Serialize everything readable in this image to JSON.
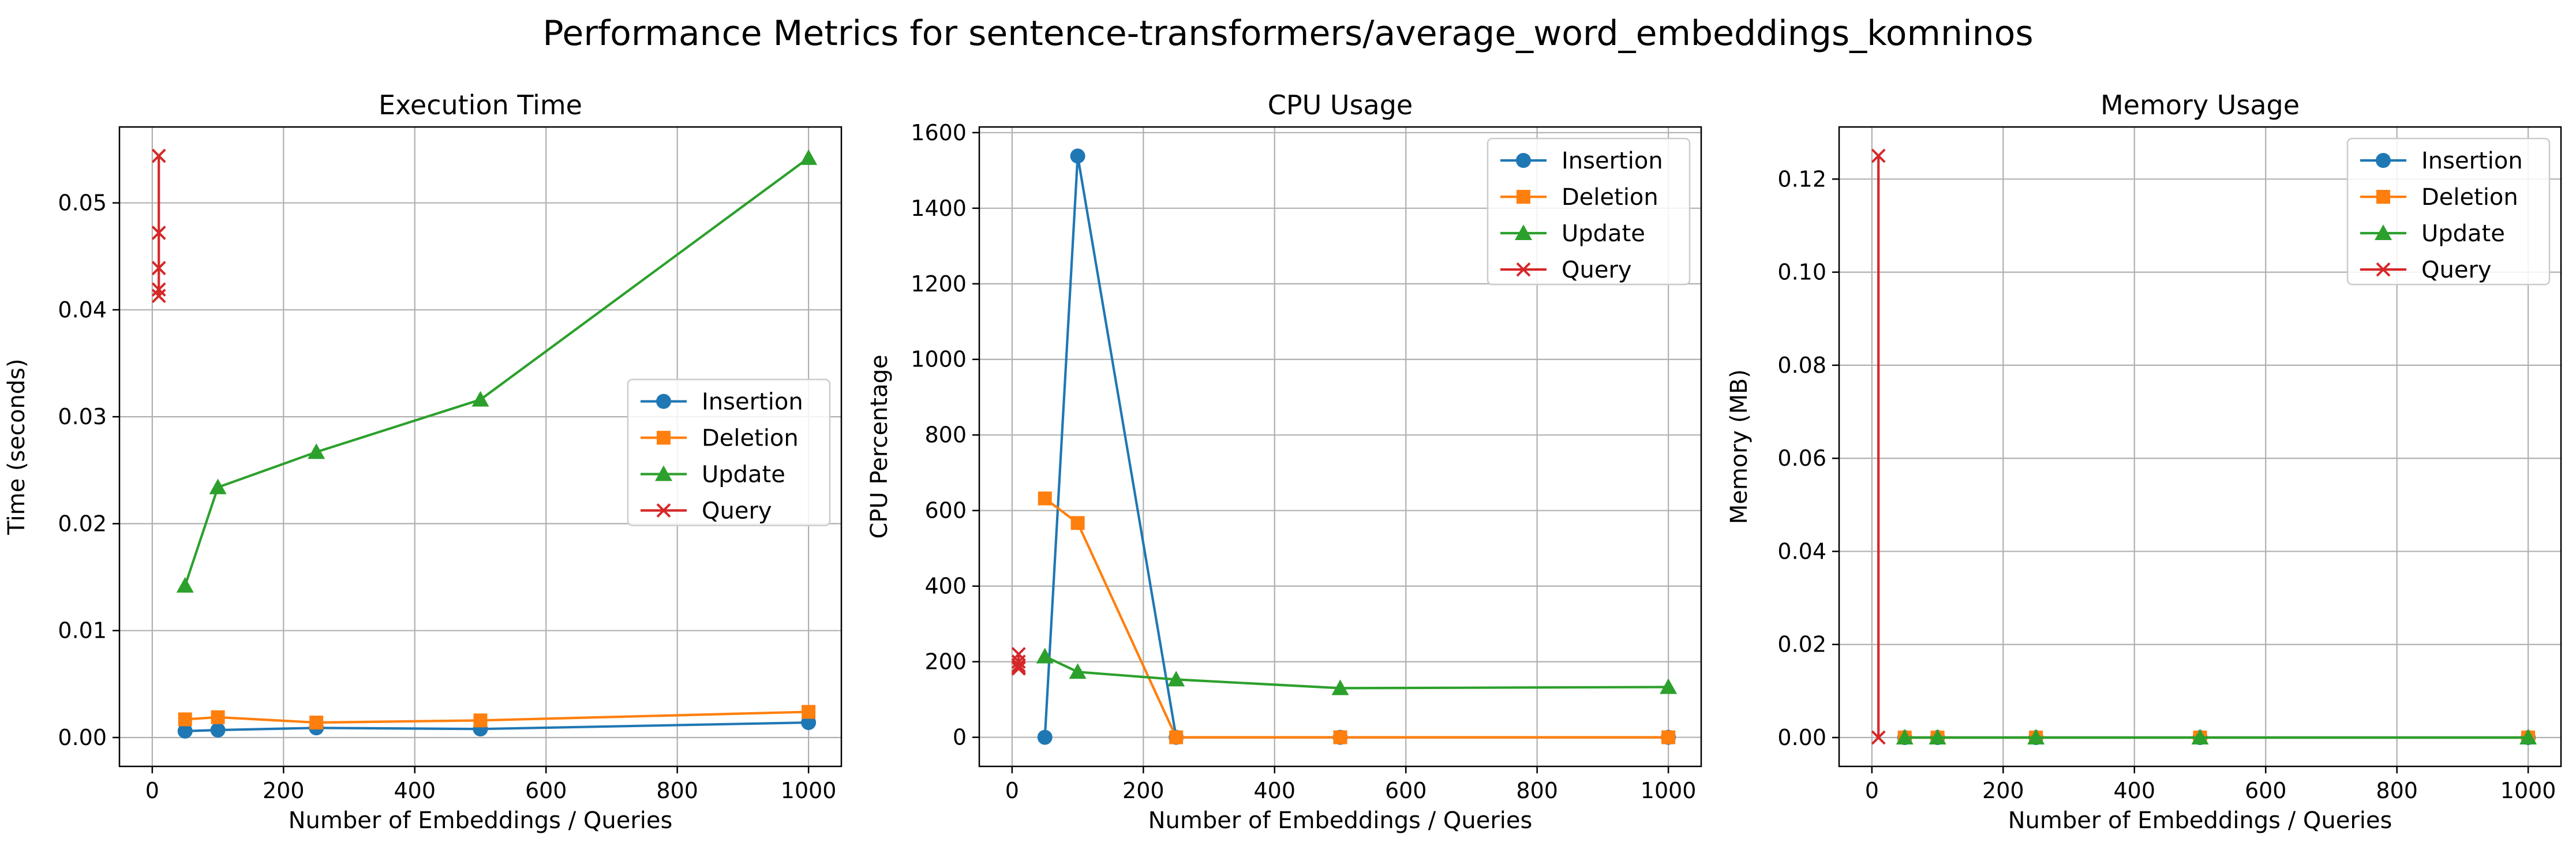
{
  "figure_title": "Performance Metrics for sentence-transformers/average_word_embeddings_komninos",
  "colors": {
    "Insertion": "#1f77b4",
    "Deletion": "#ff7f0e",
    "Update": "#2ca02c",
    "Query": "#d62728"
  },
  "chart_data": [
    {
      "type": "line",
      "title": "Execution Time",
      "xlabel": "Number of Embeddings / Queries",
      "ylabel": "Time (seconds)",
      "xlim": [
        -50,
        1050
      ],
      "ylim": [
        -0.0027,
        0.0571
      ],
      "xticks": [
        0,
        200,
        400,
        600,
        800,
        1000
      ],
      "yticks": [
        0.0,
        0.01,
        0.02,
        0.03,
        0.04,
        0.05
      ],
      "ytick_labels": [
        "0.00",
        "0.01",
        "0.02",
        "0.03",
        "0.04",
        "0.05"
      ],
      "grid": true,
      "legend_position": "center right",
      "series": [
        {
          "name": "Insertion",
          "marker": "circle",
          "x": [
            50,
            100,
            250,
            500,
            1000
          ],
          "y": [
            0.0006,
            0.0007,
            0.0009,
            0.0008,
            0.0014
          ]
        },
        {
          "name": "Deletion",
          "marker": "square",
          "x": [
            50,
            100,
            250,
            500,
            1000
          ],
          "y": [
            0.0017,
            0.0019,
            0.0014,
            0.0016,
            0.0024
          ]
        },
        {
          "name": "Update",
          "marker": "triangle",
          "x": [
            50,
            100,
            250,
            500,
            1000
          ],
          "y": [
            0.0142,
            0.0234,
            0.0267,
            0.0316,
            0.0542
          ]
        },
        {
          "name": "Query",
          "marker": "x",
          "x": [
            10,
            10,
            10,
            10,
            10
          ],
          "y": [
            0.0544,
            0.0472,
            0.0439,
            0.0419,
            0.0413
          ]
        }
      ]
    },
    {
      "type": "line",
      "title": "CPU Usage",
      "xlabel": "Number of Embeddings / Queries",
      "ylabel": "CPU Percentage",
      "xlim": [
        -50,
        1050
      ],
      "ylim": [
        -77,
        1615
      ],
      "xticks": [
        0,
        200,
        400,
        600,
        800,
        1000
      ],
      "yticks": [
        0,
        200,
        400,
        600,
        800,
        1000,
        1200,
        1400,
        1600
      ],
      "ytick_labels": [
        "0",
        "200",
        "400",
        "600",
        "800",
        "1000",
        "1200",
        "1400",
        "1600"
      ],
      "grid": true,
      "legend_position": "upper right",
      "series": [
        {
          "name": "Insertion",
          "marker": "circle",
          "x": [
            50,
            100,
            250,
            500,
            1000
          ],
          "y": [
            0,
            1538,
            0,
            0,
            0
          ]
        },
        {
          "name": "Deletion",
          "marker": "square",
          "x": [
            50,
            100,
            250,
            500,
            1000
          ],
          "y": [
            632,
            567,
            0,
            0,
            0
          ]
        },
        {
          "name": "Update",
          "marker": "triangle",
          "x": [
            50,
            100,
            250,
            500,
            1000
          ],
          "y": [
            214,
            173,
            153,
            130,
            133
          ]
        },
        {
          "name": "Query",
          "marker": "x",
          "x": [
            10,
            10,
            10,
            10,
            10
          ],
          "y": [
            220,
            200,
            190,
            185,
            182
          ]
        }
      ]
    },
    {
      "type": "line",
      "title": "Memory Usage",
      "xlabel": "Number of Embeddings / Queries",
      "ylabel": "Memory (MB)",
      "xlim": [
        -50,
        1050
      ],
      "ylim": [
        -0.0062,
        0.1312
      ],
      "xticks": [
        0,
        200,
        400,
        600,
        800,
        1000
      ],
      "yticks": [
        0.0,
        0.02,
        0.04,
        0.06,
        0.08,
        0.1,
        0.12
      ],
      "ytick_labels": [
        "0.00",
        "0.02",
        "0.04",
        "0.06",
        "0.08",
        "0.10",
        "0.12"
      ],
      "grid": true,
      "legend_position": "upper right",
      "series": [
        {
          "name": "Insertion",
          "marker": "circle",
          "x": [
            50,
            100,
            250,
            500,
            1000
          ],
          "y": [
            0,
            0,
            0,
            0,
            0
          ]
        },
        {
          "name": "Deletion",
          "marker": "square",
          "x": [
            50,
            100,
            250,
            500,
            1000
          ],
          "y": [
            0,
            0,
            0,
            0,
            0
          ]
        },
        {
          "name": "Update",
          "marker": "triangle",
          "x": [
            50,
            100,
            250,
            500,
            1000
          ],
          "y": [
            0,
            0,
            0,
            0,
            0
          ]
        },
        {
          "name": "Query",
          "marker": "x",
          "x": [
            10,
            10
          ],
          "y": [
            0.125,
            0
          ]
        }
      ]
    }
  ]
}
